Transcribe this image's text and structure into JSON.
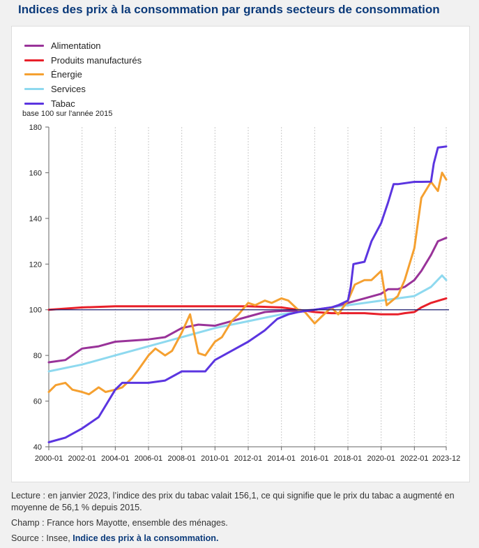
{
  "page": {
    "title": "Indices des prix à la consommation par grands secteurs de consommation"
  },
  "notes": {
    "lecture": "Lecture : en janvier 2023, l’indice des prix du tabac valait 156,1, ce qui signifie que le prix du tabac a augmenté en moyenne de 56,1 % depuis 2015.",
    "champ": "Champ : France hors Mayotte, ensemble des ménages.",
    "source_prefix": "Source : Insee, ",
    "source_link": "Indice des prix à la consommation."
  },
  "chart_data": {
    "type": "line",
    "title": "Indices des prix à la consommation par grands secteurs de consommation",
    "ylabel": "base 100 sur l'année 2015",
    "xlabel": "",
    "ylim": [
      40,
      180
    ],
    "yticks": [
      "40",
      "60",
      "80",
      "100",
      "120",
      "140",
      "160",
      "180"
    ],
    "xticks": [
      "2000-01",
      "2002-01",
      "2004-01",
      "2006-01",
      "2008-01",
      "2010-01",
      "2012-01",
      "2014-01",
      "2016-01",
      "2018-01",
      "2020-01",
      "2022-01",
      "2023-12"
    ],
    "x_range": [
      "2000-01",
      "2023-12"
    ],
    "grid": "vertical",
    "reference_line": 100,
    "legend_position": "top-left",
    "series": [
      {
        "name": "Alimentation",
        "color": "#993399",
        "points": [
          [
            "2000-01",
            77
          ],
          [
            "2001-01",
            78
          ],
          [
            "2002-01",
            83
          ],
          [
            "2003-01",
            84
          ],
          [
            "2004-01",
            86
          ],
          [
            "2005-01",
            86.5
          ],
          [
            "2006-01",
            87
          ],
          [
            "2007-01",
            88
          ],
          [
            "2008-01",
            92
          ],
          [
            "2009-01",
            93.5
          ],
          [
            "2010-01",
            93
          ],
          [
            "2011-01",
            95
          ],
          [
            "2012-01",
            97
          ],
          [
            "2013-01",
            99
          ],
          [
            "2014-01",
            99.5
          ],
          [
            "2015-01",
            99.5
          ],
          [
            "2016-01",
            100
          ],
          [
            "2017-01",
            101
          ],
          [
            "2018-01",
            103
          ],
          [
            "2019-01",
            105
          ],
          [
            "2020-01",
            107
          ],
          [
            "2020-06",
            109
          ],
          [
            "2021-01",
            109
          ],
          [
            "2021-06",
            110
          ],
          [
            "2022-01",
            113
          ],
          [
            "2022-06",
            117
          ],
          [
            "2023-01",
            124
          ],
          [
            "2023-06",
            130
          ],
          [
            "2023-12",
            131.5
          ]
        ]
      },
      {
        "name": "Produits manufacturés",
        "color": "#e8202a",
        "points": [
          [
            "2000-01",
            100
          ],
          [
            "2002-01",
            101
          ],
          [
            "2004-01",
            101.5
          ],
          [
            "2006-01",
            101.5
          ],
          [
            "2008-01",
            101.5
          ],
          [
            "2010-01",
            101.5
          ],
          [
            "2012-01",
            101.5
          ],
          [
            "2014-01",
            101
          ],
          [
            "2015-01",
            100
          ],
          [
            "2016-01",
            99
          ],
          [
            "2017-01",
            98.5
          ],
          [
            "2018-01",
            98.5
          ],
          [
            "2019-01",
            98.5
          ],
          [
            "2020-01",
            98
          ],
          [
            "2021-01",
            98
          ],
          [
            "2021-06",
            98.5
          ],
          [
            "2022-01",
            99
          ],
          [
            "2022-06",
            101
          ],
          [
            "2023-01",
            103
          ],
          [
            "2023-12",
            105
          ]
        ]
      },
      {
        "name": "Énergie",
        "color": "#f5a030",
        "points": [
          [
            "2000-01",
            64
          ],
          [
            "2000-06",
            67
          ],
          [
            "2001-01",
            68
          ],
          [
            "2001-06",
            65
          ],
          [
            "2002-01",
            64
          ],
          [
            "2002-06",
            63
          ],
          [
            "2003-01",
            66
          ],
          [
            "2003-06",
            64
          ],
          [
            "2004-01",
            65
          ],
          [
            "2004-06",
            66
          ],
          [
            "2005-01",
            70
          ],
          [
            "2005-06",
            74
          ],
          [
            "2006-01",
            80
          ],
          [
            "2006-06",
            83
          ],
          [
            "2007-01",
            80
          ],
          [
            "2007-06",
            82
          ],
          [
            "2008-01",
            90
          ],
          [
            "2008-07",
            98
          ],
          [
            "2009-01",
            81
          ],
          [
            "2009-06",
            80
          ],
          [
            "2010-01",
            86
          ],
          [
            "2010-06",
            88
          ],
          [
            "2011-01",
            95
          ],
          [
            "2011-06",
            98
          ],
          [
            "2012-01",
            103
          ],
          [
            "2012-06",
            102
          ],
          [
            "2013-01",
            104
          ],
          [
            "2013-06",
            103
          ],
          [
            "2014-01",
            105
          ],
          [
            "2014-06",
            104
          ],
          [
            "2015-01",
            100
          ],
          [
            "2015-06",
            99
          ],
          [
            "2016-01",
            94
          ],
          [
            "2016-06",
            97
          ],
          [
            "2017-01",
            101
          ],
          [
            "2017-06",
            98
          ],
          [
            "2018-01",
            104
          ],
          [
            "2018-06",
            111
          ],
          [
            "2019-01",
            113
          ],
          [
            "2019-06",
            113
          ],
          [
            "2020-01",
            117
          ],
          [
            "2020-05",
            102
          ],
          [
            "2021-01",
            106
          ],
          [
            "2021-06",
            113
          ],
          [
            "2022-01",
            127
          ],
          [
            "2022-06",
            149
          ],
          [
            "2023-01",
            156
          ],
          [
            "2023-06",
            152
          ],
          [
            "2023-09",
            160
          ],
          [
            "2023-12",
            157
          ]
        ]
      },
      {
        "name": "Services",
        "color": "#8ed9ef",
        "points": [
          [
            "2000-01",
            73
          ],
          [
            "2002-01",
            76
          ],
          [
            "2004-01",
            80
          ],
          [
            "2006-01",
            84
          ],
          [
            "2008-01",
            88
          ],
          [
            "2010-01",
            92
          ],
          [
            "2012-01",
            95
          ],
          [
            "2014-01",
            98
          ],
          [
            "2016-01",
            100
          ],
          [
            "2018-01",
            102
          ],
          [
            "2020-01",
            104
          ],
          [
            "2022-01",
            106
          ],
          [
            "2023-01",
            110
          ],
          [
            "2023-09",
            115
          ],
          [
            "2023-12",
            113
          ]
        ]
      },
      {
        "name": "Tabac",
        "color": "#5b35e0",
        "points": [
          [
            "2000-01",
            42
          ],
          [
            "2001-01",
            44
          ],
          [
            "2002-01",
            48
          ],
          [
            "2003-01",
            53
          ],
          [
            "2004-01",
            65
          ],
          [
            "2004-06",
            68
          ],
          [
            "2006-01",
            68
          ],
          [
            "2007-01",
            69
          ],
          [
            "2008-01",
            73
          ],
          [
            "2009-06",
            73
          ],
          [
            "2010-01",
            78
          ],
          [
            "2011-01",
            82
          ],
          [
            "2012-01",
            86
          ],
          [
            "2013-01",
            91
          ],
          [
            "2013-10",
            96
          ],
          [
            "2014-06",
            98
          ],
          [
            "2015-01",
            99
          ],
          [
            "2016-01",
            100
          ],
          [
            "2017-01",
            101
          ],
          [
            "2017-06",
            102
          ],
          [
            "2018-01",
            104
          ],
          [
            "2018-03",
            110
          ],
          [
            "2018-05",
            120
          ],
          [
            "2019-01",
            121
          ],
          [
            "2019-06",
            130
          ],
          [
            "2020-01",
            138
          ],
          [
            "2020-06",
            147
          ],
          [
            "2020-10",
            155
          ],
          [
            "2021-01",
            155
          ],
          [
            "2022-01",
            156
          ],
          [
            "2022-06",
            156
          ],
          [
            "2023-01",
            156.1
          ],
          [
            "2023-03",
            164
          ],
          [
            "2023-06",
            171
          ],
          [
            "2023-12",
            171.5
          ]
        ]
      }
    ]
  }
}
